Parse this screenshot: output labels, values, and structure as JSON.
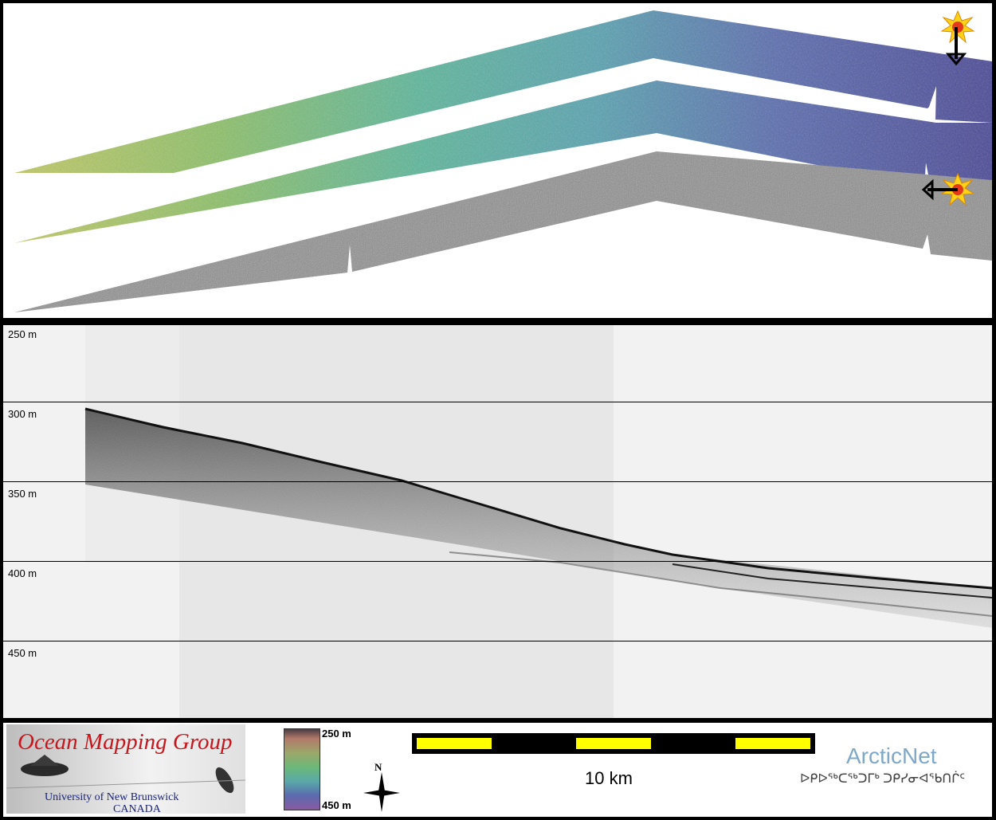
{
  "profile": {
    "depth_labels": [
      "250 m",
      "300 m",
      "350 m",
      "400 m",
      "450 m"
    ]
  },
  "legend": {
    "colorbar_top": "250 m",
    "colorbar_bottom": "450 m",
    "scale_label": "10 km",
    "north_label": "N"
  },
  "logos": {
    "omg_title": "Ocean Mapping Group",
    "omg_line1": "University of New Brunswick",
    "omg_line2": "CANADA",
    "arcticnet_title": "ArcticNet",
    "arcticnet_syllabics": "ᐅᑭᐅᖅᑕᖅᑐᒥᒃ ᑐᑭᓯᓂᐊᖃᑎᒌᑦ"
  },
  "colors": {
    "bathy_shallow": "#c2c862",
    "bathy_mid": "#5fb8a4",
    "bathy_deep": "#4a4c9a",
    "backscatter": "#8a8a8a",
    "scale_yellow": "#ffff00",
    "omg_red": "#c8161d",
    "arcticnet_blue": "#7fa8c8"
  }
}
